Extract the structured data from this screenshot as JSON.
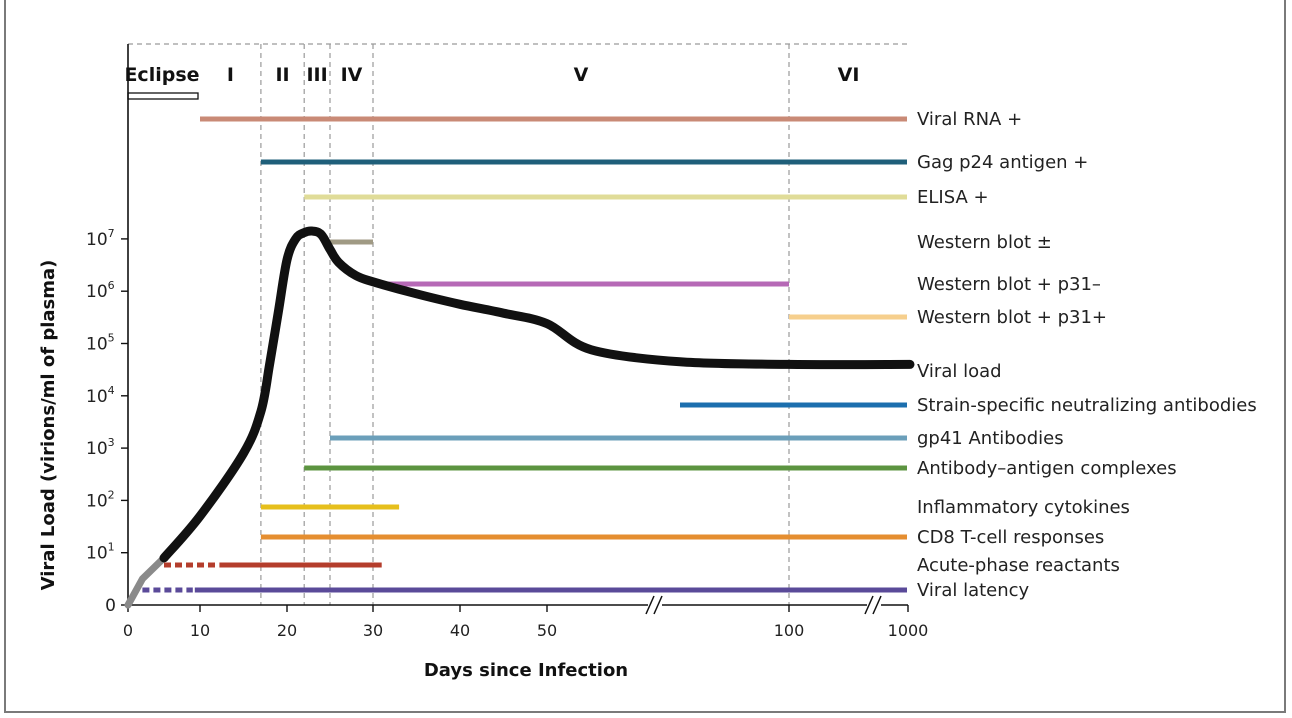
{
  "chart_data": {
    "type": "line",
    "xlabel": "Days since Infection",
    "ylabel": "Viral Load (virions/ml of plasma)",
    "x_ticks": [
      "0",
      "10",
      "20",
      "30",
      "40",
      "50",
      "100",
      "1000"
    ],
    "y_ticks": [
      {
        "base": "0",
        "exp": ""
      },
      {
        "base": "10",
        "exp": "1"
      },
      {
        "base": "10",
        "exp": "2"
      },
      {
        "base": "10",
        "exp": "3"
      },
      {
        "base": "10",
        "exp": "4"
      },
      {
        "base": "10",
        "exp": "5"
      },
      {
        "base": "10",
        "exp": "6"
      },
      {
        "base": "10",
        "exp": "7"
      }
    ],
    "stages": [
      {
        "label": "Eclipse",
        "start": 0,
        "end": 10
      },
      {
        "label": "I",
        "start": 10,
        "end": 17
      },
      {
        "label": "II",
        "start": 17,
        "end": 22
      },
      {
        "label": "III",
        "start": 22,
        "end": 25
      },
      {
        "label": "IV",
        "start": 25,
        "end": 30
      },
      {
        "label": "V",
        "start": 30,
        "end": 100
      },
      {
        "label": "VI",
        "start": 100,
        "end": 1000
      }
    ],
    "stage_boundaries_days": [
      17,
      22,
      25,
      30,
      100
    ],
    "viral_load_series": {
      "name": "Viral load",
      "days": [
        0,
        2,
        5,
        10,
        15,
        17,
        18,
        19,
        20,
        21,
        22,
        23,
        24,
        25,
        26,
        28,
        30,
        35,
        40,
        45,
        50,
        60,
        80,
        100,
        1000
      ],
      "log10_copies": [
        0,
        0.5,
        0.9,
        1.7,
        2.9,
        3.7,
        4.6,
        5.6,
        6.6,
        7.0,
        7.12,
        7.15,
        7.08,
        6.8,
        6.55,
        6.3,
        6.18,
        5.95,
        5.75,
        5.58,
        5.38,
        4.88,
        4.65,
        4.6,
        4.6
      ]
    },
    "markers": [
      {
        "name": "Viral RNA +",
        "start": 10,
        "end": 1000,
        "color": "#c98a76"
      },
      {
        "name": "Gag p24 antigen +",
        "start": 17,
        "end": 1000,
        "color": "#1f5f7a"
      },
      {
        "name": "ELISA +",
        "start": 22,
        "end": 1000,
        "color": "#e0dc98"
      },
      {
        "name": "Western blot ±",
        "start": 25,
        "end": 30,
        "color": "#a09a84"
      },
      {
        "name": "Western blot + p31–",
        "start": 30,
        "end": 100,
        "color": "#b669b6"
      },
      {
        "name": "Western blot + p31+",
        "start": 100,
        "end": 1000,
        "color": "#f6cf8d"
      },
      {
        "name": "Viral load",
        "start": null,
        "end": null,
        "color": "#111111"
      },
      {
        "name": "Strain-specific neutralizing antibodies",
        "start": 80,
        "end": 1000,
        "color": "#1c6fae"
      },
      {
        "name": "gp41 Antibodies",
        "start": 25,
        "end": 1000,
        "color": "#6b9fba"
      },
      {
        "name": "Antibody–antigen complexes",
        "start": 22,
        "end": 1000,
        "color": "#5c9440"
      },
      {
        "name": "Inflammatory cytokines",
        "start": 17,
        "end": 33,
        "color": "#e6bf1c"
      },
      {
        "name": "CD8 T-cell responses",
        "start": 17,
        "end": 1000,
        "color": "#e58e30"
      },
      {
        "name": "Acute-phase reactants",
        "start": 5,
        "end": 31,
        "dashed_until": 12,
        "color": "#b43d2c"
      },
      {
        "name": "Viral latency",
        "start": 2,
        "end": 1000,
        "dashed_until": 9,
        "color": "#5a4a99"
      }
    ]
  }
}
